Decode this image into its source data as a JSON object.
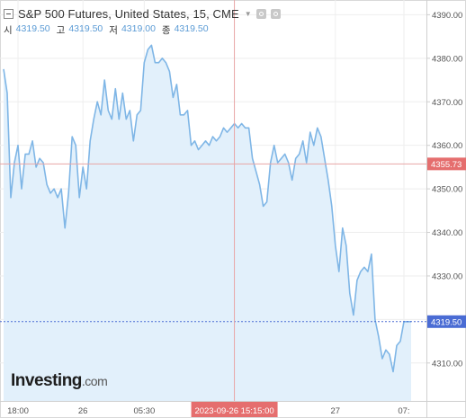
{
  "header": {
    "title": "S&P 500 Futures, United States, 15, CME",
    "ohlc": [
      {
        "label": "시",
        "value": "4319.50"
      },
      {
        "label": "고",
        "value": "4319.50"
      },
      {
        "label": "저",
        "value": "4319.00"
      },
      {
        "label": "종",
        "value": "4319.50"
      }
    ]
  },
  "logo": {
    "brand": "Investing",
    "tld": ".com"
  },
  "colors": {
    "line": "#7fb6e6",
    "area": "#e2f0fb",
    "crosshair": "#e8a6a6",
    "crosshair_label": "#e56e6e",
    "last_price": "#4a6cd4"
  },
  "chart_data": {
    "type": "area",
    "ylim": [
      4300,
      4392
    ],
    "yticks": [
      4310,
      4320,
      4330,
      4340,
      4350,
      4360,
      4370,
      4380,
      4390
    ],
    "ytick_labels": [
      "4310.00",
      "4320.00",
      "4330.00",
      "4340.00",
      "4350.00",
      "4360.00",
      "4370.00",
      "4380.00",
      "4390.00"
    ],
    "xticks": [
      {
        "label": "18:00",
        "index": 4
      },
      {
        "label": "26",
        "index": 22
      },
      {
        "label": "05:30",
        "index": 39
      },
      {
        "label": "27",
        "index": 92
      },
      {
        "label": "07:",
        "index": 111
      }
    ],
    "crosshair": {
      "index": 64,
      "date_label": "2023-09-26 15:15:00",
      "price": 4355.73,
      "price_label": "4355.73"
    },
    "last_price": {
      "value": 4319.5,
      "label": "4319.50"
    },
    "y": [
      4377.5,
      4372,
      4348,
      4356,
      4360,
      4350,
      4358,
      4358,
      4361,
      4355,
      4357,
      4356,
      4351,
      4349,
      4350,
      4348,
      4350,
      4341,
      4349,
      4362,
      4360,
      4348,
      4355,
      4350,
      4361,
      4366,
      4370,
      4367,
      4375,
      4368,
      4366,
      4373,
      4366,
      4372,
      4366,
      4368,
      4361,
      4367,
      4368,
      4379,
      4382,
      4383,
      4379,
      4379,
      4380,
      4379,
      4377,
      4371,
      4374,
      4367,
      4367,
      4368,
      4360,
      4361,
      4359,
      4360,
      4361,
      4360,
      4362,
      4361,
      4362,
      4364,
      4363,
      4364,
      4365,
      4364,
      4365,
      4364,
      4364,
      4357,
      4354,
      4351,
      4346,
      4347,
      4356,
      4360,
      4356,
      4357,
      4358,
      4356,
      4352,
      4357,
      4358,
      4361,
      4356,
      4363,
      4360,
      4364,
      4362,
      4357,
      4352,
      4346,
      4337,
      4331,
      4341,
      4337,
      4326,
      4321,
      4329,
      4331,
      4332,
      4331,
      4335,
      4320,
      4316,
      4311,
      4313,
      4312,
      4308,
      4314,
      4315,
      4319.5,
      4319.5,
      4319.5
    ]
  }
}
